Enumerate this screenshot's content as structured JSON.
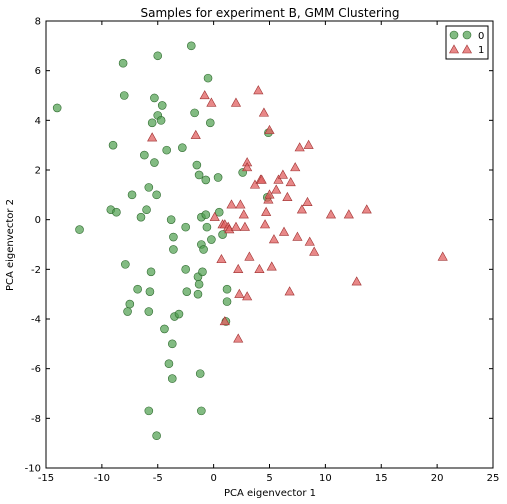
{
  "chart_data": {
    "type": "scatter",
    "title": "Samples for experiment B, GMM Clustering",
    "xlabel": "PCA eigenvector 1",
    "ylabel": "PCA eigenvector 2",
    "xlim": [
      -15,
      25
    ],
    "ylim": [
      -10,
      8
    ],
    "xticks": [
      -15,
      -10,
      -5,
      0,
      5,
      10,
      15,
      20,
      25
    ],
    "yticks": [
      -10,
      -8,
      -6,
      -4,
      -2,
      0,
      2,
      4,
      6,
      8
    ],
    "grid": false,
    "legend_position": "top-right",
    "series": [
      {
        "name": "0",
        "marker": "circle",
        "color": "#4d9e4d",
        "points": [
          [
            -14,
            4.5
          ],
          [
            -12,
            -0.4
          ],
          [
            -9.2,
            0.4
          ],
          [
            -9,
            3
          ],
          [
            -8.7,
            0.3
          ],
          [
            -8.1,
            6.3
          ],
          [
            -8,
            5
          ],
          [
            -7.9,
            -1.8
          ],
          [
            -7.5,
            -3.4
          ],
          [
            -7.7,
            -3.7
          ],
          [
            -7.3,
            1.0
          ],
          [
            -6.8,
            -2.8
          ],
          [
            -6.5,
            0.1
          ],
          [
            -6.2,
            2.6
          ],
          [
            -6,
            0.4
          ],
          [
            -5.8,
            1.3
          ],
          [
            -5.6,
            -2.1
          ],
          [
            -5.7,
            -2.9
          ],
          [
            -5.8,
            -3.7
          ],
          [
            -5.5,
            3.9
          ],
          [
            -5.3,
            4.9
          ],
          [
            -5.3,
            2.3
          ],
          [
            -5.1,
            1.0
          ],
          [
            -5,
            6.6
          ],
          [
            -5,
            4.2
          ],
          [
            -4.7,
            4.0
          ],
          [
            -4.6,
            4.6
          ],
          [
            -4.4,
            -4.4
          ],
          [
            -4.2,
            2.8
          ],
          [
            -4,
            -5.8
          ],
          [
            -3.8,
            0
          ],
          [
            -3.7,
            -5.0
          ],
          [
            -3.6,
            -0.7
          ],
          [
            -3.6,
            -1.2
          ],
          [
            -3.7,
            -6.4
          ],
          [
            -3.5,
            -3.9
          ],
          [
            -3.1,
            -3.8
          ],
          [
            -2.8,
            2.9
          ],
          [
            -2.5,
            -0.3
          ],
          [
            -2.5,
            -2.0
          ],
          [
            -2.4,
            -2.9
          ],
          [
            -2,
            7.0
          ],
          [
            -1.7,
            4.3
          ],
          [
            -1.5,
            2.2
          ],
          [
            -1.3,
            1.8
          ],
          [
            -1.4,
            -2.3
          ],
          [
            -1.3,
            -2.6
          ],
          [
            -1.4,
            -3.0
          ],
          [
            -1.2,
            -6.2
          ],
          [
            -1.1,
            -7.7
          ],
          [
            -1.1,
            0.1
          ],
          [
            -1.1,
            -1.0
          ],
          [
            -1.0,
            -2.1
          ],
          [
            -0.9,
            -1.2
          ],
          [
            -0.7,
            1.6
          ],
          [
            -0.7,
            0.2
          ],
          [
            -0.6,
            -0.3
          ],
          [
            -0.5,
            5.7
          ],
          [
            -0.3,
            3.9
          ],
          [
            -0.2,
            -0.8
          ],
          [
            0.4,
            1.7
          ],
          [
            0.5,
            0.3
          ],
          [
            0.8,
            -0.6
          ],
          [
            1.2,
            -2.8
          ],
          [
            1.2,
            -3.3
          ],
          [
            1.1,
            -4.1
          ],
          [
            2.6,
            1.9
          ],
          [
            4.9,
            3.5
          ],
          [
            4.8,
            0.9
          ],
          [
            -5.8,
            -7.7
          ],
          [
            -5.1,
            -8.7
          ]
        ]
      },
      {
        "name": "1",
        "marker": "triangle",
        "color": "#e06060",
        "points": [
          [
            -5.5,
            3.3
          ],
          [
            -1.6,
            3.4
          ],
          [
            -0.8,
            5.0
          ],
          [
            -0.2,
            4.7
          ],
          [
            0.1,
            0.1
          ],
          [
            0.8,
            -0.2
          ],
          [
            1.0,
            -0.2
          ],
          [
            1.3,
            -0.3
          ],
          [
            1.4,
            -0.4
          ],
          [
            1.6,
            0.6
          ],
          [
            2.0,
            4.7
          ],
          [
            2.0,
            -0.3
          ],
          [
            2.2,
            -2.0
          ],
          [
            2.2,
            -4.8
          ],
          [
            2.3,
            -3.0
          ],
          [
            2.4,
            0.6
          ],
          [
            2.7,
            0.2
          ],
          [
            2.8,
            -0.3
          ],
          [
            3.0,
            -3.1
          ],
          [
            3.0,
            2.3
          ],
          [
            3.0,
            2.1
          ],
          [
            3.2,
            -1.5
          ],
          [
            3.7,
            1.4
          ],
          [
            4.0,
            5.2
          ],
          [
            4.2,
            1.6
          ],
          [
            4.1,
            -2.0
          ],
          [
            4.5,
            4.3
          ],
          [
            4.6,
            -0.2
          ],
          [
            4.7,
            0.3
          ],
          [
            4.9,
            0.8
          ],
          [
            5.0,
            3.6
          ],
          [
            5.2,
            -1.9
          ],
          [
            5.0,
            1.0
          ],
          [
            5.4,
            -0.8
          ],
          [
            5.6,
            1.2
          ],
          [
            5.8,
            1.6
          ],
          [
            6.2,
            1.8
          ],
          [
            6.3,
            -0.5
          ],
          [
            6.6,
            0.9
          ],
          [
            6.8,
            -2.9
          ],
          [
            6.9,
            1.5
          ],
          [
            7.3,
            2.1
          ],
          [
            7.5,
            -0.7
          ],
          [
            7.7,
            2.9
          ],
          [
            7.9,
            0.4
          ],
          [
            8.4,
            0.7
          ],
          [
            8.5,
            3.0
          ],
          [
            8.6,
            -0.9
          ],
          [
            9.0,
            -1.3
          ],
          [
            10.5,
            0.2
          ],
          [
            12.1,
            0.2
          ],
          [
            12.8,
            -2.5
          ],
          [
            13.7,
            0.4
          ],
          [
            20.5,
            -1.5
          ],
          [
            1.0,
            -4.1
          ],
          [
            0.7,
            -1.6
          ],
          [
            4.3,
            1.6
          ]
        ]
      }
    ]
  }
}
